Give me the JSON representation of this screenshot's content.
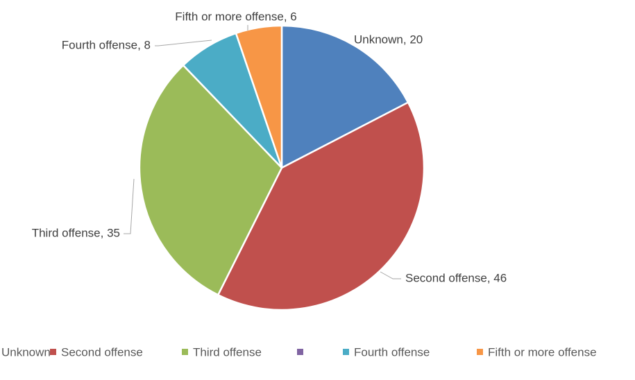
{
  "chart_data": {
    "type": "pie",
    "title": "",
    "categories": [
      "Unknown",
      "Second offense",
      "Third offense",
      "",
      "Fourth offense",
      "Fifth or more offense"
    ],
    "values": [
      20,
      46,
      35,
      0,
      8,
      6
    ],
    "colors": [
      "#4F81BD",
      "#C0504D",
      "#9BBB59",
      "#8064A2",
      "#4BACC6",
      "#F79646"
    ],
    "data_labels": [
      "Unknown, 20",
      "Second offense, 46",
      "Third offense, 35",
      "",
      "Fourth offense, 8",
      "Fifth or more offense, 6"
    ],
    "legend": {
      "placement": "bottom",
      "entries": [
        "Unknown",
        "Second offense",
        "Third offense",
        "",
        "Fourth offense",
        "Fifth or more offense"
      ]
    }
  }
}
